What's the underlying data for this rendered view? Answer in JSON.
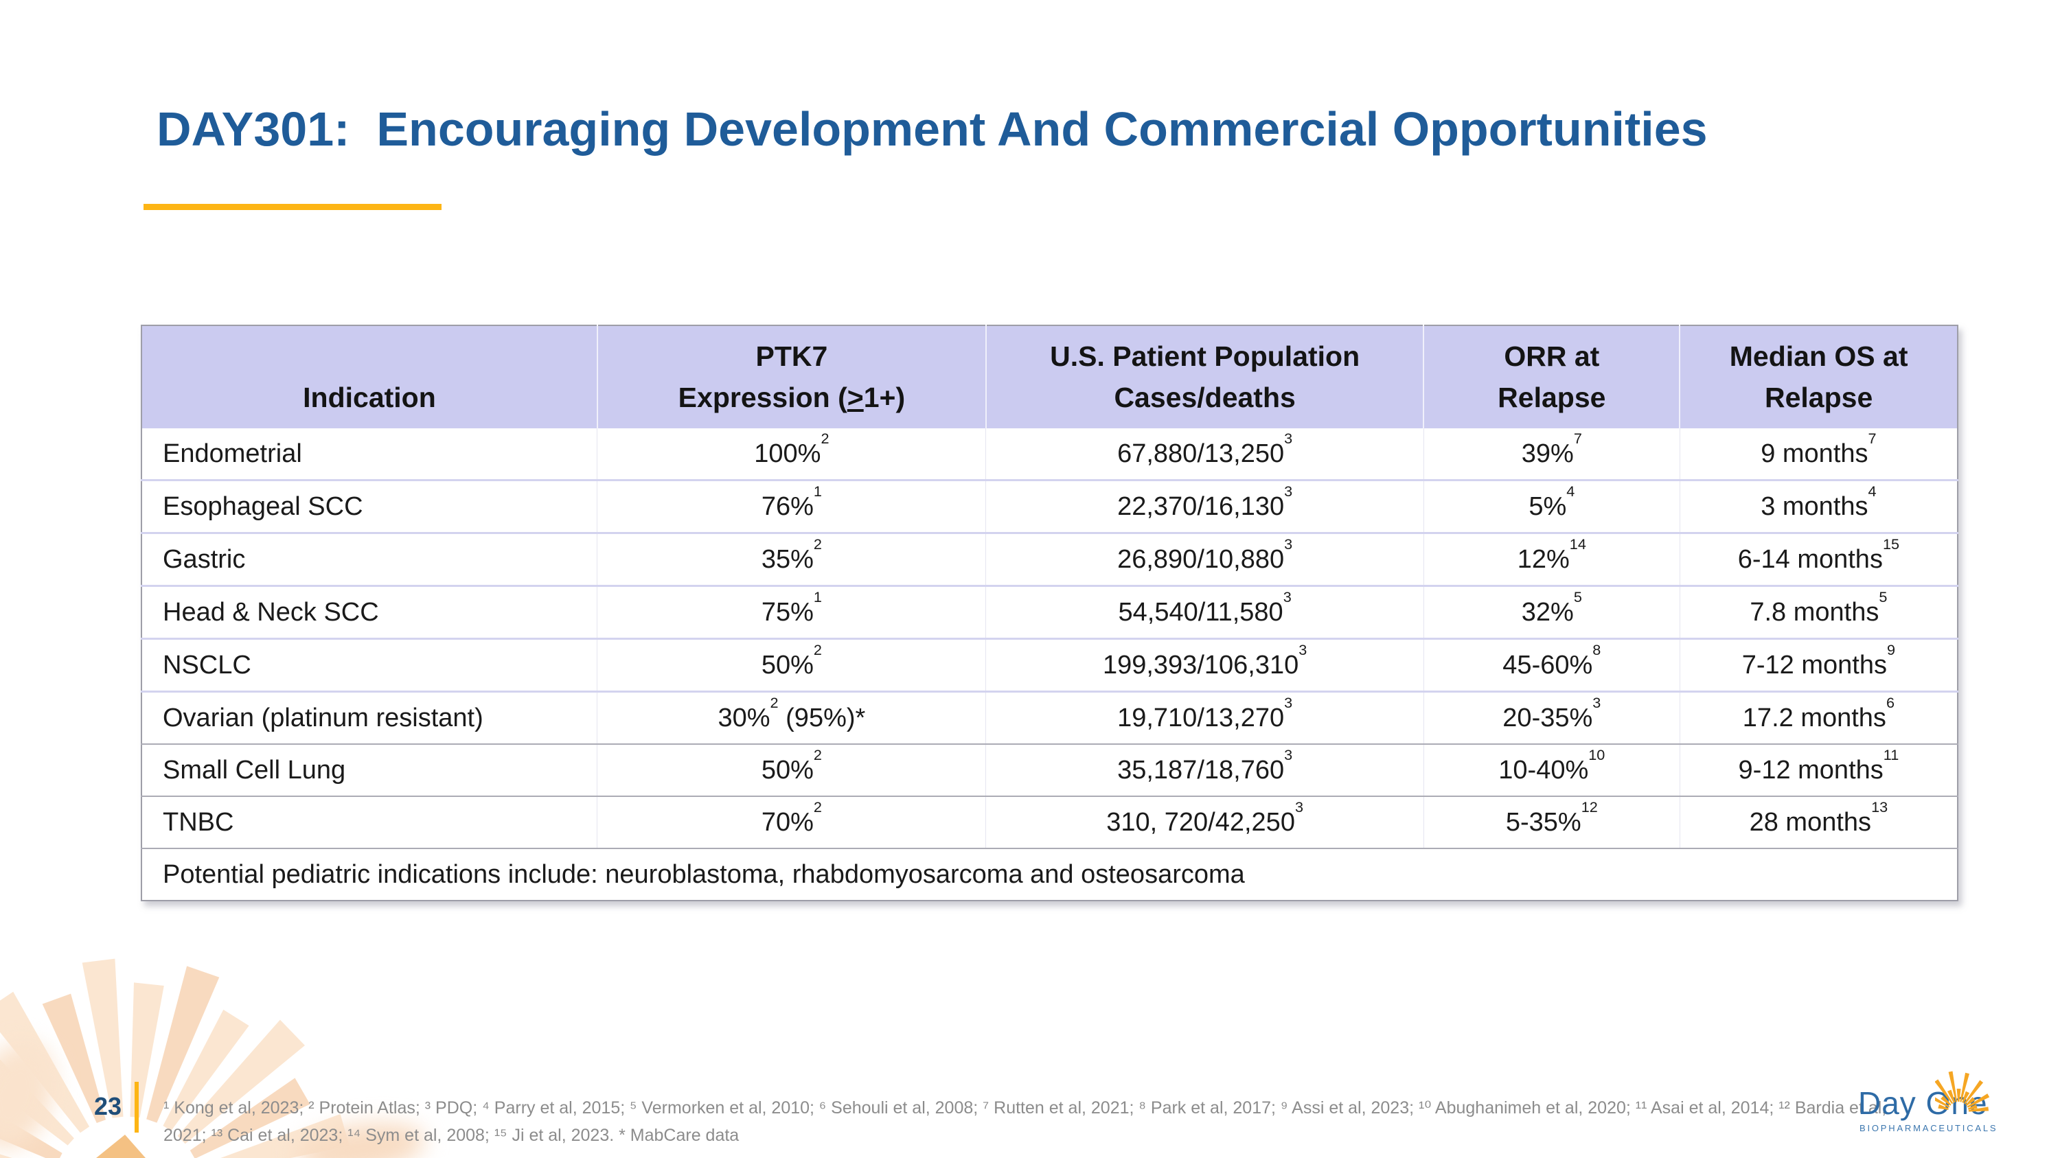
{
  "slide": {
    "title": "DAY301:  Encouraging Development And Commercial Opportunities",
    "title_color": "#1F5C99",
    "accent_gold": "#FDB515",
    "page_number": "23",
    "background_color": "#FFFFFF"
  },
  "table": {
    "header_bg": "#CBCBF0",
    "columns": [
      {
        "id": "indication",
        "line1": [],
        "line2": [
          {
            "t": "Indication"
          }
        ]
      },
      {
        "id": "ptk7-expression",
        "line1": [
          {
            "t": "PTK7"
          }
        ],
        "line2": [
          {
            "t": "Expression ("
          },
          {
            "u": ">"
          },
          {
            "t": "1+)"
          }
        ]
      },
      {
        "id": "us-patient-population",
        "line1": [
          {
            "t": "U.S. Patient Population"
          }
        ],
        "line2": [
          {
            "t": "Cases/deaths"
          }
        ]
      },
      {
        "id": "orr-at-relapse",
        "line1": [
          {
            "t": "ORR at"
          }
        ],
        "line2": [
          {
            "t": "Relapse"
          }
        ]
      },
      {
        "id": "median-os-at-relapse",
        "line1": [
          {
            "t": "Median OS at"
          }
        ],
        "line2": [
          {
            "t": "Relapse"
          }
        ]
      }
    ],
    "rows": [
      {
        "indication": [
          {
            "t": "Endometrial"
          }
        ],
        "ptk7": [
          {
            "t": "100%"
          },
          {
            "sup": "2"
          }
        ],
        "population": [
          {
            "t": "67,880/13,250"
          },
          {
            "sup": "3"
          }
        ],
        "orr": [
          {
            "t": "39%"
          },
          {
            "sup": "7"
          }
        ],
        "os": [
          {
            "t": "9 months"
          },
          {
            "sup": "7"
          }
        ]
      },
      {
        "indication": [
          {
            "t": "Esophageal SCC"
          }
        ],
        "ptk7": [
          {
            "t": "76%"
          },
          {
            "sup": "1"
          }
        ],
        "population": [
          {
            "t": "22,370/16,130"
          },
          {
            "sup": "3"
          }
        ],
        "orr": [
          {
            "t": "5%"
          },
          {
            "sup": "4"
          }
        ],
        "os": [
          {
            "t": "3 months"
          },
          {
            "sup": "4"
          }
        ]
      },
      {
        "indication": [
          {
            "t": "Gastric"
          }
        ],
        "ptk7": [
          {
            "t": "35%"
          },
          {
            "sup": "2"
          }
        ],
        "population": [
          {
            "t": "26,890/10,880"
          },
          {
            "sup": "3"
          }
        ],
        "orr": [
          {
            "t": "12%"
          },
          {
            "sup": "14"
          }
        ],
        "os": [
          {
            "t": "6-14 months"
          },
          {
            "sup": "15"
          }
        ]
      },
      {
        "indication": [
          {
            "t": "Head & Neck SCC"
          }
        ],
        "ptk7": [
          {
            "t": "75%"
          },
          {
            "sup": "1"
          }
        ],
        "population": [
          {
            "t": "54,540/11,580"
          },
          {
            "sup": "3"
          }
        ],
        "orr": [
          {
            "t": "32%"
          },
          {
            "sup": "5"
          }
        ],
        "os": [
          {
            "t": "7.8 months"
          },
          {
            "sup": "5"
          }
        ]
      },
      {
        "indication": [
          {
            "t": "NSCLC"
          }
        ],
        "ptk7": [
          {
            "t": "50%"
          },
          {
            "sup": "2"
          }
        ],
        "population": [
          {
            "t": "199,393/106,310"
          },
          {
            "sup": "3"
          }
        ],
        "orr": [
          {
            "t": "45-60%"
          },
          {
            "sup": "8"
          }
        ],
        "os": [
          {
            "t": "7-12 months"
          },
          {
            "sup": "9"
          }
        ]
      },
      {
        "indication": [
          {
            "t": "Ovarian (platinum resistant)"
          }
        ],
        "ptk7": [
          {
            "t": "30%"
          },
          {
            "sup": "2"
          },
          {
            "t": " (95%)*"
          }
        ],
        "population": [
          {
            "t": "19,710/13,270"
          },
          {
            "sup": "3"
          }
        ],
        "orr": [
          {
            "t": "20-35%"
          },
          {
            "sup": "3"
          }
        ],
        "os": [
          {
            "t": "17.2 months"
          },
          {
            "sup": "6"
          }
        ]
      },
      {
        "indication": [
          {
            "t": "Small Cell Lung"
          }
        ],
        "ptk7": [
          {
            "t": "50%"
          },
          {
            "sup": "2"
          }
        ],
        "population": [
          {
            "t": "35,187/18,760"
          },
          {
            "sup": "3"
          }
        ],
        "orr": [
          {
            "t": "10-40%"
          },
          {
            "sup": "10"
          }
        ],
        "os": [
          {
            "t": "9-12 months"
          },
          {
            "sup": "11"
          }
        ]
      },
      {
        "indication": [
          {
            "t": "TNBC"
          }
        ],
        "ptk7": [
          {
            "t": "70%"
          },
          {
            "sup": "2"
          }
        ],
        "population": [
          {
            "t": "310, 720/42,250"
          },
          {
            "sup": "3"
          }
        ],
        "orr": [
          {
            "t": "5-35%"
          },
          {
            "sup": "12"
          }
        ],
        "os": [
          {
            "t": "28 months"
          },
          {
            "sup": "13"
          }
        ]
      }
    ],
    "footer_note": "Potential pediatric indications include: neuroblastoma, rhabdomyosarcoma and osteosarcoma"
  },
  "footnotes": {
    "lines": [
      "¹ Kong et al, 2023; ² Protein Atlas; ³ PDQ; ⁴ Parry et al, 2015; ⁵ Vermorken et al, 2010; ⁶ Sehouli et al, 2008; ⁷ Rutten et al, 2021; ⁸ Park et al, 2017; ⁹ Assi et al, 2023; ¹⁰ Abughanimeh et al, 2020; ¹¹ Asai et al, 2014; ¹² Bardia et al,",
      "2021; ¹³ Cai et al, 2023; ¹⁴ Sym et al, 2008; ¹⁵ Ji et al, 2023. * MabCare data"
    ]
  },
  "logo": {
    "name": "Day One",
    "subtitle": "BIOPHARMACEUTICALS",
    "blue": "#2E6BA6",
    "gold": "#F5A623"
  }
}
